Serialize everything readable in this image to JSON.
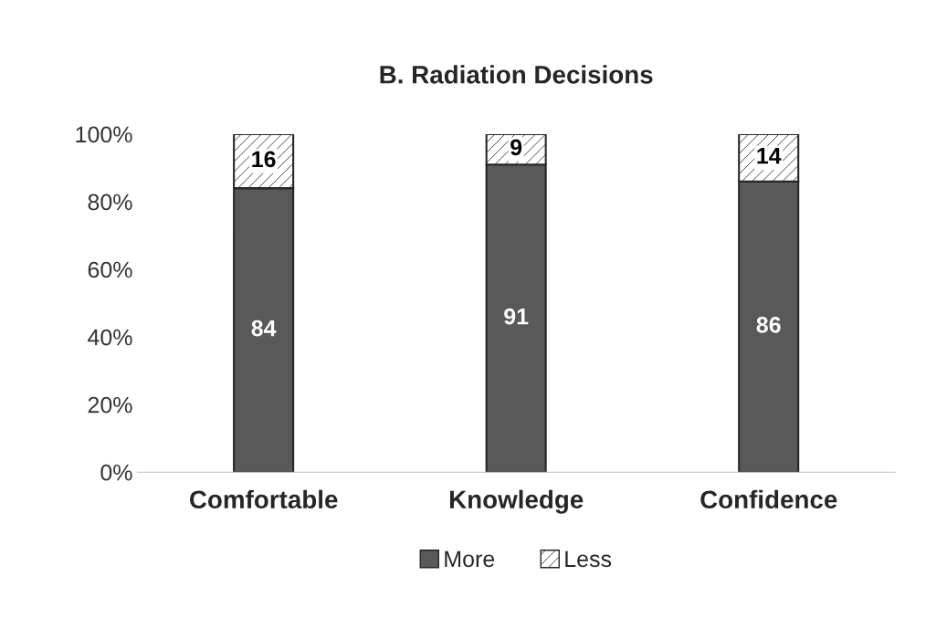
{
  "chart_data": {
    "type": "bar",
    "title": "B. Radiation Decisions",
    "stacked": true,
    "data_labels": true,
    "legend": "bottom",
    "grid": false,
    "categories": [
      "Comfortable",
      "Knowledge",
      "Confidence"
    ],
    "series": [
      {
        "name": "More",
        "color": "#595959",
        "values": [
          84,
          91,
          86
        ]
      },
      {
        "name": "Less",
        "color": "#262626",
        "values": [
          16,
          9,
          14
        ]
      }
    ],
    "ylim": [
      0,
      100
    ],
    "yticks": [
      {
        "value": 0,
        "label": "0%"
      },
      {
        "value": 20,
        "label": "20%"
      },
      {
        "value": 40,
        "label": "40%"
      },
      {
        "value": 60,
        "label": "60%"
      },
      {
        "value": 80,
        "label": "80%"
      },
      {
        "value": 100,
        "label": "100%"
      }
    ]
  }
}
